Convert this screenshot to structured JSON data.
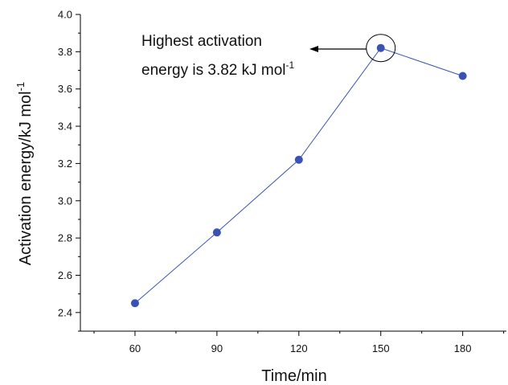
{
  "chart_data": {
    "type": "line",
    "x": [
      60,
      90,
      120,
      150,
      180
    ],
    "series": [
      {
        "values": [
          2.45,
          2.83,
          3.22,
          3.82,
          3.67
        ]
      }
    ],
    "xlabel": "Time/min",
    "ylabel": {
      "base": "Activation energy/kJ mol",
      "superscript": "-1"
    },
    "x_ticks": [
      "60",
      "90",
      "120",
      "150",
      "180"
    ],
    "y_ticks": [
      "2.4",
      "2.6",
      "2.8",
      "3.0",
      "3.2",
      "3.4",
      "3.6",
      "3.8",
      "4.0"
    ],
    "xlim": [
      40,
      196
    ],
    "ylim": [
      2.3,
      4.0
    ],
    "grid": false,
    "colors": {
      "series": "#3a52b4",
      "axis": "#000000"
    },
    "annotation": {
      "line1": "Highest activation",
      "line2_base": "energy is 3.82 kJ mol",
      "line2_superscript": "-1",
      "target_x": 150,
      "target_y": 3.82
    }
  }
}
